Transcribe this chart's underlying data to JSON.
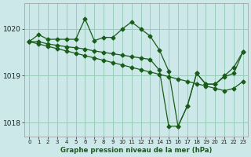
{
  "background_color": "#cce8e8",
  "grid_color": "#99ccbb",
  "line_color": "#1a5c1a",
  "xlabel": "Graphe pression niveau de la mer (hPa)",
  "xlim": [
    -0.5,
    23.5
  ],
  "ylim": [
    1017.7,
    1020.55
  ],
  "y_ticks": [
    1018,
    1019,
    1020
  ],
  "x_ticks": [
    0,
    1,
    2,
    3,
    4,
    5,
    6,
    7,
    8,
    9,
    10,
    11,
    12,
    13,
    14,
    15,
    16,
    17,
    18,
    19,
    20,
    21,
    22,
    23
  ],
  "line1_y": [
    1019.73,
    1019.88,
    1019.78,
    1019.78,
    1019.78,
    1019.78,
    1020.22,
    1019.75,
    1019.82,
    1019.82,
    1020.0,
    1020.15,
    1020.0,
    1019.85,
    1019.55,
    1019.1,
    1017.92,
    1018.35,
    1019.05,
    1018.82,
    1018.82,
    1019.0,
    1019.18,
    1019.52
  ],
  "line2_y": [
    1019.73,
    1019.73,
    1019.68,
    1019.65,
    1019.62,
    1019.6,
    1019.57,
    1019.53,
    1019.5,
    1019.47,
    1019.44,
    1019.41,
    1019.38,
    1019.35,
    1019.12,
    1017.92,
    1017.92,
    1018.35,
    1019.05,
    1018.82,
    1018.82,
    1018.98,
    1019.05,
    1019.52
  ],
  "line3_y": [
    1019.73,
    1019.68,
    1019.63,
    1019.58,
    1019.53,
    1019.48,
    1019.43,
    1019.38,
    1019.33,
    1019.28,
    1019.23,
    1019.18,
    1019.13,
    1019.08,
    1019.03,
    1018.98,
    1018.93,
    1018.88,
    1018.83,
    1018.78,
    1018.73,
    1018.68,
    1018.73,
    1018.88
  ]
}
